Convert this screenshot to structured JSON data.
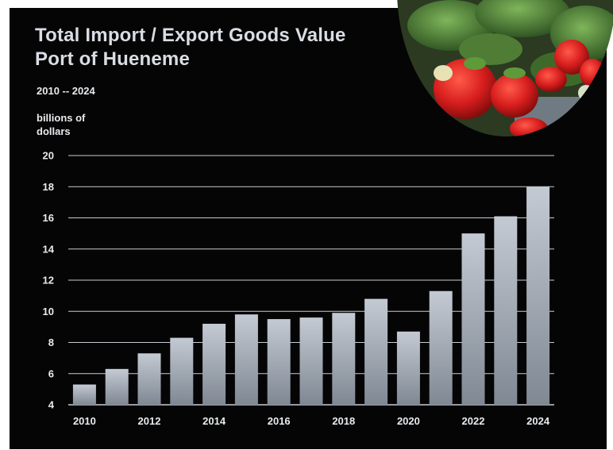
{
  "chart_data": {
    "type": "bar",
    "title": [
      "Total Import / Export Goods Value",
      "Port of Hueneme"
    ],
    "subtitle": "2010 -- 2024",
    "ylabel": [
      "billions of",
      "dollars"
    ],
    "categories": [
      "2010",
      "2011",
      "2012",
      "2013",
      "2014",
      "2015",
      "2016",
      "2017",
      "2018",
      "2019",
      "2020",
      "2021",
      "2022",
      "2023",
      "2024"
    ],
    "x_tick_labels": [
      "2010",
      "2012",
      "2014",
      "2016",
      "2018",
      "2020",
      "2022",
      "2024"
    ],
    "values": [
      5.3,
      6.3,
      7.3,
      8.3,
      9.2,
      9.8,
      9.5,
      9.6,
      9.9,
      10.8,
      8.7,
      11.3,
      15.0,
      16.1,
      18.0
    ],
    "ylim": [
      4,
      20
    ],
    "yticks": [
      4,
      6,
      8,
      10,
      12,
      14,
      16,
      18,
      20
    ],
    "grid": true,
    "colors": {
      "background": "#050505",
      "bar_top": "#c4cad3",
      "bar_bottom": "#7f8893",
      "grid": "#c8ccd2",
      "text": "#e8ebee"
    }
  },
  "photo": {
    "icon": "strawberry-field-photo"
  }
}
